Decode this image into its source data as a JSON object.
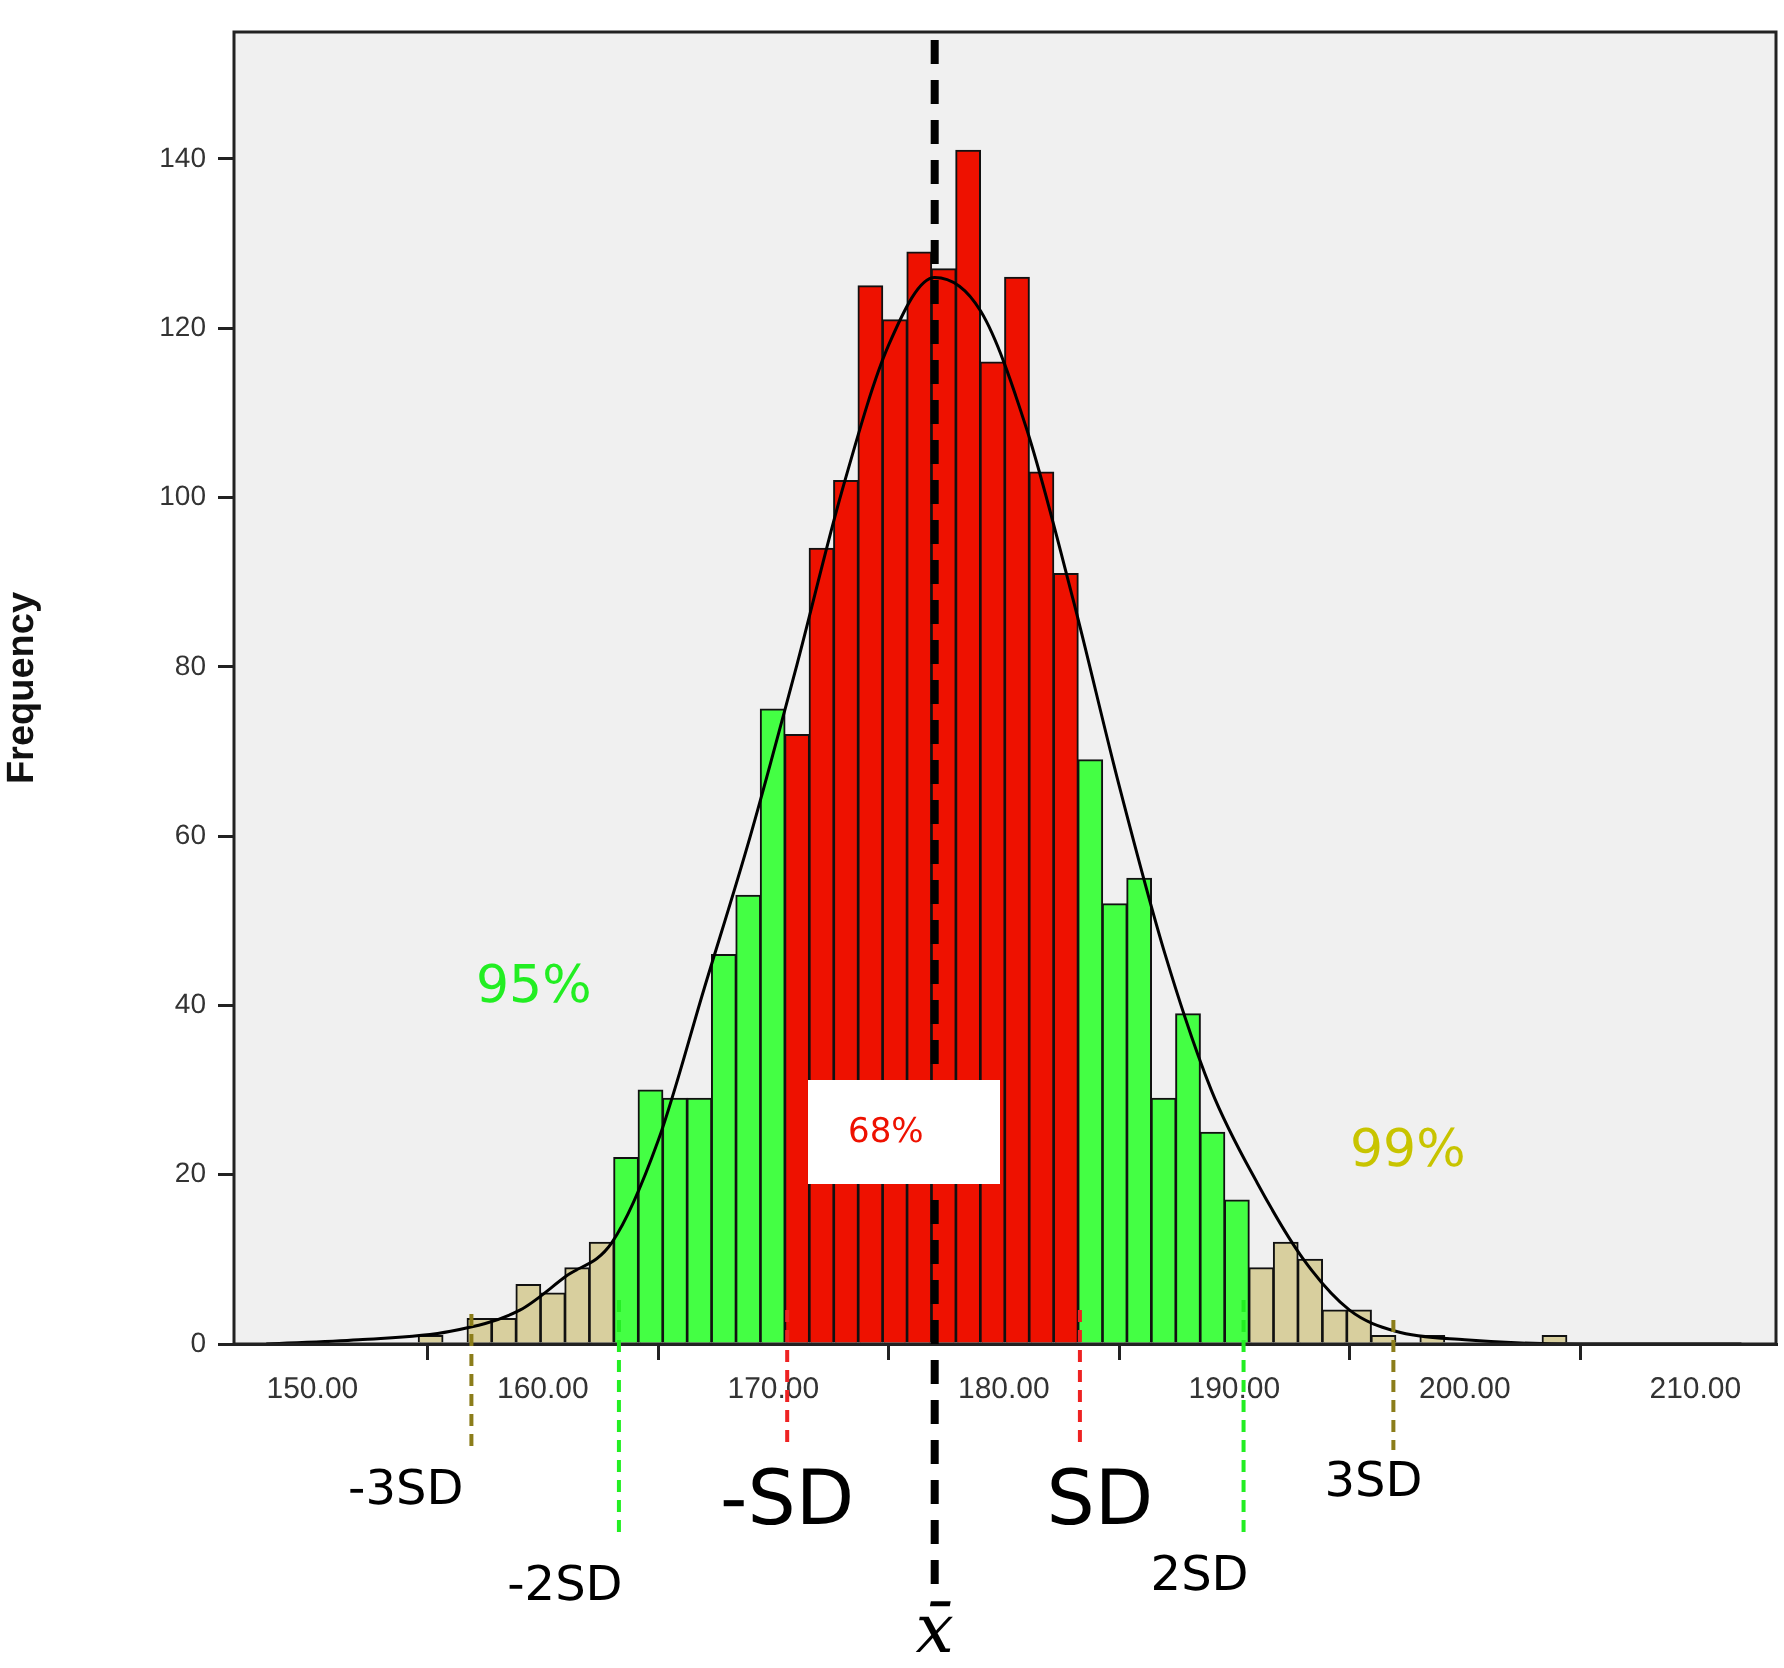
{
  "chart_data": {
    "type": "histogram",
    "ylabel": "Frequency",
    "bins": [
      154.6,
      155.66,
      156.72,
      157.78,
      158.84,
      159.9,
      160.96,
      162.02,
      163.08,
      164.14,
      165.2,
      166.26,
      167.32,
      168.38,
      169.44,
      170.5,
      171.56,
      172.62,
      173.68,
      174.74,
      175.8,
      176.86,
      177.92,
      178.98,
      180.04,
      181.1,
      182.16,
      183.22,
      184.28,
      185.34,
      186.4,
      187.46,
      188.52,
      189.58,
      190.64,
      191.7,
      192.76,
      193.82,
      194.88,
      195.94,
      197.0,
      198.06,
      199.12,
      200.18,
      201.24,
      202.3,
      203.36,
      204.42
    ],
    "values": [
      1,
      0,
      3,
      3,
      7,
      6,
      9,
      12,
      22,
      30,
      29,
      29,
      46,
      53,
      75,
      72,
      94,
      102,
      125,
      121,
      129,
      127,
      141,
      116,
      126,
      103,
      91,
      69,
      52,
      55,
      29,
      39,
      25,
      17,
      9,
      12,
      10,
      4,
      4,
      1,
      0,
      1,
      0,
      0,
      0,
      0,
      1
    ],
    "colors": [
      "#d8cf9e",
      "#d8cf9e",
      "#d8cf9e",
      "#d8cf9e",
      "#d8cf9e",
      "#d8cf9e",
      "#d8cf9e",
      "#d8cf9e",
      "#44ff44",
      "#44ff44",
      "#44ff44",
      "#44ff44",
      "#44ff44",
      "#44ff44",
      "#44ff44",
      "#ee1100",
      "#ee1100",
      "#ee1100",
      "#ee1100",
      "#ee1100",
      "#ee1100",
      "#ee1100",
      "#ee1100",
      "#ee1100",
      "#ee1100",
      "#ee1100",
      "#ee1100",
      "#44ff44",
      "#44ff44",
      "#44ff44",
      "#44ff44",
      "#44ff44",
      "#44ff44",
      "#44ff44",
      "#d8cf9e",
      "#d8cf9e",
      "#d8cf9e",
      "#d8cf9e",
      "#d8cf9e",
      "#d8cf9e",
      "#d8cf9e",
      "#d8cf9e",
      "#d8cf9e",
      "#d8cf9e",
      "#d8cf9e",
      "#d8cf9e",
      "#d8cf9e"
    ],
    "series": [
      {
        "type": "line",
        "color": "#000000",
        "x": [
          148,
          152,
          156,
          159,
          161,
          163,
          165,
          167,
          169,
          171,
          173,
          175,
          177,
          179,
          181,
          183,
          185,
          187,
          189,
          191,
          193,
          195,
          197,
          200,
          205,
          212
        ],
        "values": [
          0,
          0.5,
          1.5,
          4,
          8,
          12,
          24,
          42,
          60,
          80,
          101,
          118,
          126,
          122,
          108,
          88,
          66,
          46,
          30,
          19,
          10,
          4,
          1.5,
          0.5,
          0,
          0
        ]
      }
    ],
    "xlim": [
      146.6,
      213.5
    ],
    "xticks": [
      {
        "value": 150,
        "label": "150.00"
      },
      {
        "value": 160,
        "label": "160.00"
      },
      {
        "value": 170,
        "label": "170.00"
      },
      {
        "value": 180,
        "label": "180.00"
      },
      {
        "value": 190,
        "label": "190.00"
      },
      {
        "value": 200,
        "label": "200.00"
      },
      {
        "value": 210,
        "label": "210.00"
      }
    ],
    "ylim": [
      0,
      155
    ],
    "yticks": [
      0,
      20,
      40,
      60,
      80,
      100,
      120,
      140
    ],
    "ref_lines": [
      {
        "axis": "x",
        "value": 156.9,
        "label": "-3SD",
        "color": "#8b7d1a",
        "line_style": "dashed"
      },
      {
        "axis": "x",
        "value": 163.3,
        "label": "-2SD",
        "color": "#22ee22",
        "line_style": "dashed"
      },
      {
        "axis": "x",
        "value": 170.6,
        "label": "-SD",
        "color": "#ee2222",
        "line_style": "dashed"
      },
      {
        "axis": "x",
        "value": 177.0,
        "label": "x̄",
        "color": "#000000",
        "line_style": "dashed"
      },
      {
        "axis": "x",
        "value": 183.3,
        "label": "SD",
        "color": "#ee2222",
        "line_style": "dashed"
      },
      {
        "axis": "x",
        "value": 190.4,
        "label": "2SD",
        "color": "#22ee22",
        "line_style": "dashed"
      },
      {
        "axis": "x",
        "value": 196.9,
        "label": "3SD",
        "color": "#8b7d1a",
        "line_style": "dashed"
      }
    ],
    "annotations": [
      "95%",
      "68%",
      "99%"
    ]
  }
}
